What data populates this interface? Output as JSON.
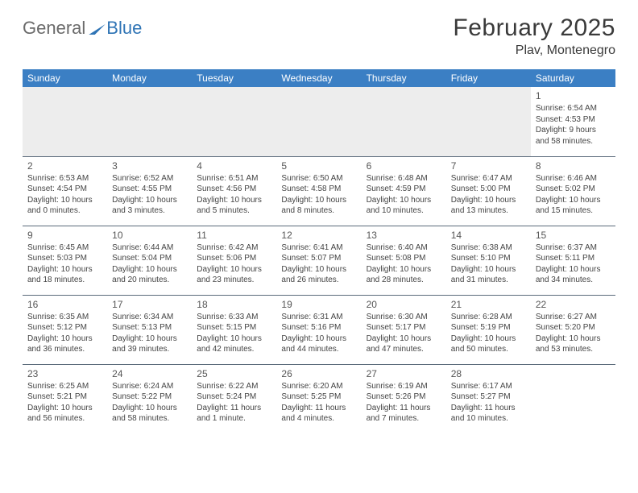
{
  "logo": {
    "word1": "General",
    "word2": "Blue"
  },
  "title": "February 2025",
  "location": "Plav, Montenegro",
  "colors": {
    "header_bg": "#3b7fc4",
    "header_text": "#ffffff",
    "border": "#5a6a7a",
    "blank_bg": "#ededed",
    "text": "#444444",
    "logo_gray": "#6a6a6a",
    "logo_blue": "#2f74b5"
  },
  "weekdays": [
    "Sunday",
    "Monday",
    "Tuesday",
    "Wednesday",
    "Thursday",
    "Friday",
    "Saturday"
  ],
  "weeks": [
    [
      null,
      null,
      null,
      null,
      null,
      null,
      {
        "n": "1",
        "sr": "Sunrise: 6:54 AM",
        "ss": "Sunset: 4:53 PM",
        "dl": "Daylight: 9 hours and 58 minutes."
      }
    ],
    [
      {
        "n": "2",
        "sr": "Sunrise: 6:53 AM",
        "ss": "Sunset: 4:54 PM",
        "dl": "Daylight: 10 hours and 0 minutes."
      },
      {
        "n": "3",
        "sr": "Sunrise: 6:52 AM",
        "ss": "Sunset: 4:55 PM",
        "dl": "Daylight: 10 hours and 3 minutes."
      },
      {
        "n": "4",
        "sr": "Sunrise: 6:51 AM",
        "ss": "Sunset: 4:56 PM",
        "dl": "Daylight: 10 hours and 5 minutes."
      },
      {
        "n": "5",
        "sr": "Sunrise: 6:50 AM",
        "ss": "Sunset: 4:58 PM",
        "dl": "Daylight: 10 hours and 8 minutes."
      },
      {
        "n": "6",
        "sr": "Sunrise: 6:48 AM",
        "ss": "Sunset: 4:59 PM",
        "dl": "Daylight: 10 hours and 10 minutes."
      },
      {
        "n": "7",
        "sr": "Sunrise: 6:47 AM",
        "ss": "Sunset: 5:00 PM",
        "dl": "Daylight: 10 hours and 13 minutes."
      },
      {
        "n": "8",
        "sr": "Sunrise: 6:46 AM",
        "ss": "Sunset: 5:02 PM",
        "dl": "Daylight: 10 hours and 15 minutes."
      }
    ],
    [
      {
        "n": "9",
        "sr": "Sunrise: 6:45 AM",
        "ss": "Sunset: 5:03 PM",
        "dl": "Daylight: 10 hours and 18 minutes."
      },
      {
        "n": "10",
        "sr": "Sunrise: 6:44 AM",
        "ss": "Sunset: 5:04 PM",
        "dl": "Daylight: 10 hours and 20 minutes."
      },
      {
        "n": "11",
        "sr": "Sunrise: 6:42 AM",
        "ss": "Sunset: 5:06 PM",
        "dl": "Daylight: 10 hours and 23 minutes."
      },
      {
        "n": "12",
        "sr": "Sunrise: 6:41 AM",
        "ss": "Sunset: 5:07 PM",
        "dl": "Daylight: 10 hours and 26 minutes."
      },
      {
        "n": "13",
        "sr": "Sunrise: 6:40 AM",
        "ss": "Sunset: 5:08 PM",
        "dl": "Daylight: 10 hours and 28 minutes."
      },
      {
        "n": "14",
        "sr": "Sunrise: 6:38 AM",
        "ss": "Sunset: 5:10 PM",
        "dl": "Daylight: 10 hours and 31 minutes."
      },
      {
        "n": "15",
        "sr": "Sunrise: 6:37 AM",
        "ss": "Sunset: 5:11 PM",
        "dl": "Daylight: 10 hours and 34 minutes."
      }
    ],
    [
      {
        "n": "16",
        "sr": "Sunrise: 6:35 AM",
        "ss": "Sunset: 5:12 PM",
        "dl": "Daylight: 10 hours and 36 minutes."
      },
      {
        "n": "17",
        "sr": "Sunrise: 6:34 AM",
        "ss": "Sunset: 5:13 PM",
        "dl": "Daylight: 10 hours and 39 minutes."
      },
      {
        "n": "18",
        "sr": "Sunrise: 6:33 AM",
        "ss": "Sunset: 5:15 PM",
        "dl": "Daylight: 10 hours and 42 minutes."
      },
      {
        "n": "19",
        "sr": "Sunrise: 6:31 AM",
        "ss": "Sunset: 5:16 PM",
        "dl": "Daylight: 10 hours and 44 minutes."
      },
      {
        "n": "20",
        "sr": "Sunrise: 6:30 AM",
        "ss": "Sunset: 5:17 PM",
        "dl": "Daylight: 10 hours and 47 minutes."
      },
      {
        "n": "21",
        "sr": "Sunrise: 6:28 AM",
        "ss": "Sunset: 5:19 PM",
        "dl": "Daylight: 10 hours and 50 minutes."
      },
      {
        "n": "22",
        "sr": "Sunrise: 6:27 AM",
        "ss": "Sunset: 5:20 PM",
        "dl": "Daylight: 10 hours and 53 minutes."
      }
    ],
    [
      {
        "n": "23",
        "sr": "Sunrise: 6:25 AM",
        "ss": "Sunset: 5:21 PM",
        "dl": "Daylight: 10 hours and 56 minutes."
      },
      {
        "n": "24",
        "sr": "Sunrise: 6:24 AM",
        "ss": "Sunset: 5:22 PM",
        "dl": "Daylight: 10 hours and 58 minutes."
      },
      {
        "n": "25",
        "sr": "Sunrise: 6:22 AM",
        "ss": "Sunset: 5:24 PM",
        "dl": "Daylight: 11 hours and 1 minute."
      },
      {
        "n": "26",
        "sr": "Sunrise: 6:20 AM",
        "ss": "Sunset: 5:25 PM",
        "dl": "Daylight: 11 hours and 4 minutes."
      },
      {
        "n": "27",
        "sr": "Sunrise: 6:19 AM",
        "ss": "Sunset: 5:26 PM",
        "dl": "Daylight: 11 hours and 7 minutes."
      },
      {
        "n": "28",
        "sr": "Sunrise: 6:17 AM",
        "ss": "Sunset: 5:27 PM",
        "dl": "Daylight: 11 hours and 10 minutes."
      },
      null
    ]
  ]
}
